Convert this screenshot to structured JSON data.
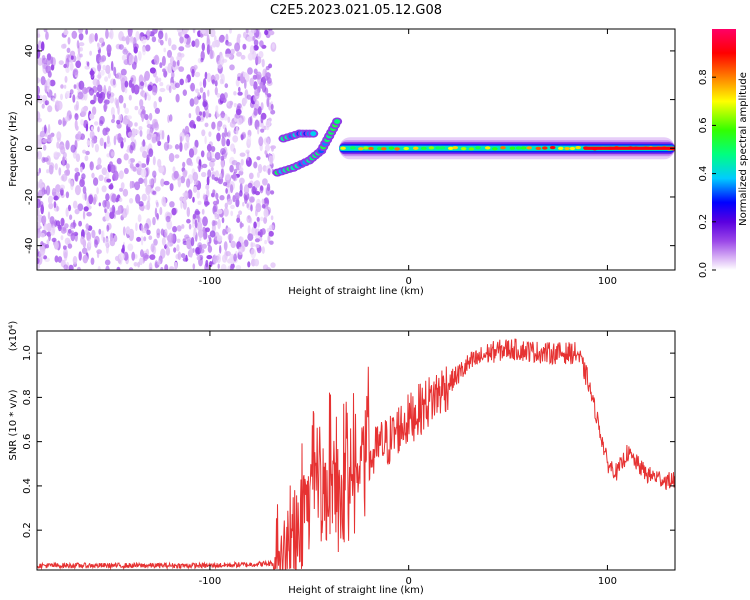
{
  "title": "C2E5.2023.021.05.12.G08",
  "chart_data": [
    {
      "type": "heatmap",
      "title": "C2E5.2023.021.05.12.G08",
      "xlabel": "Height of straight line (km)",
      "ylabel": "Frequency (Hz)",
      "xlim": [
        -187,
        134
      ],
      "ylim": [
        -50,
        49
      ],
      "xticks": [
        -100,
        0,
        100
      ],
      "yticks": [
        -40,
        -20,
        0,
        20,
        40
      ],
      "colorbar": {
        "label": "Normalized spectral amplitude",
        "range": [
          0.0,
          1.0
        ],
        "ticks": [
          0.0,
          0.2,
          0.4,
          0.6,
          0.8
        ],
        "colormap": [
          "#ffffff",
          "#d9b3f5",
          "#9b47e8",
          "#5a00e0",
          "#0000ff",
          "#00ccff",
          "#00ff80",
          "#33ff00",
          "#ffff00",
          "#ff8000",
          "#ff0000",
          "#ff0066"
        ]
      },
      "features": [
        {
          "name": "noise",
          "x_range": [
            -187,
            -68
          ],
          "y_range": [
            -50,
            49
          ],
          "amplitude": 0.1
        },
        {
          "name": "upper branch",
          "points": [
            [
              -63,
              4
            ],
            [
              -55,
              6
            ],
            [
              -48,
              6
            ]
          ],
          "amplitude": 0.35
        },
        {
          "name": "lower branch",
          "points": [
            [
              -66,
              -10
            ],
            [
              -58,
              -8
            ],
            [
              -50,
              -5
            ],
            [
              -44,
              -1
            ],
            [
              -40,
              5
            ],
            [
              -36,
              11
            ]
          ],
          "amplitude": 0.4
        },
        {
          "name": "main signal",
          "x_range": [
            -35,
            134
          ],
          "y": 0,
          "amplitude": 0.85
        }
      ]
    },
    {
      "type": "line",
      "xlabel": "Height of straight line (km)",
      "ylabel": "SNR (10 * v/v)",
      "y_multiplier": "(x10⁴)",
      "xlim": [
        -187,
        134
      ],
      "ylim": [
        0.02,
        1.1
      ],
      "xticks": [
        -100,
        0,
        100
      ],
      "yticks": [
        0.2,
        0.4,
        0.6,
        0.8,
        1.0
      ],
      "series": [
        {
          "color": "#e63232",
          "x": [
            -187,
            -160,
            -130,
            -100,
            -80,
            -68,
            -60,
            -55,
            -50,
            -45,
            -40,
            -35,
            -30,
            -25,
            -20,
            -15,
            -10,
            -5,
            0,
            10,
            20,
            30,
            40,
            50,
            60,
            70,
            80,
            85,
            90,
            95,
            100,
            105,
            110,
            115,
            120,
            125,
            130,
            134
          ],
          "y": [
            0.04,
            0.04,
            0.04,
            0.04,
            0.045,
            0.05,
            0.12,
            0.22,
            0.32,
            0.42,
            0.38,
            0.36,
            0.38,
            0.42,
            0.5,
            0.58,
            0.6,
            0.66,
            0.7,
            0.78,
            0.86,
            0.95,
            1.0,
            1.02,
            1.01,
            1.0,
            1.0,
            1.0,
            0.88,
            0.7,
            0.5,
            0.46,
            0.55,
            0.5,
            0.45,
            0.44,
            0.42,
            0.43
          ]
        }
      ]
    }
  ]
}
